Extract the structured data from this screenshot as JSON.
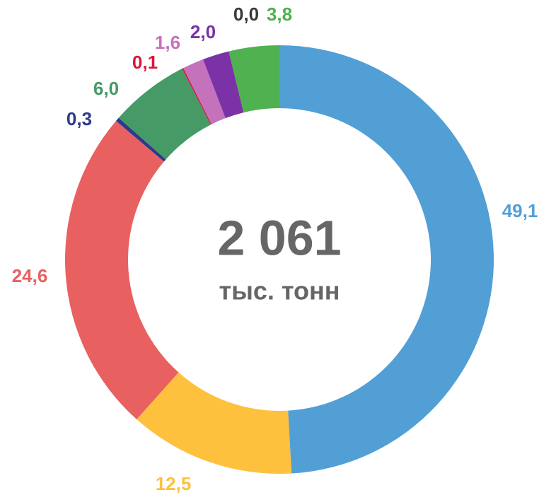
{
  "chart_data": {
    "type": "donut",
    "center_label": "2 061",
    "center_sublabel": "тыс. тонн",
    "values": [
      49.1,
      12.5,
      24.6,
      0.3,
      6.0,
      0.1,
      1.6,
      2.0,
      0.0,
      3.8
    ],
    "value_labels": [
      "49,1",
      "12,5",
      "24,6",
      "0,3",
      "6,0",
      "0,1",
      "1,6",
      "2,0",
      "0,0",
      "3,8"
    ],
    "colors": [
      "#529fd6",
      "#fec13d",
      "#e96060",
      "#2d3a8c",
      "#459a66",
      "#d9163b",
      "#c572bc",
      "#7a32a6",
      "#3a3a3a",
      "#4fb14f"
    ]
  }
}
